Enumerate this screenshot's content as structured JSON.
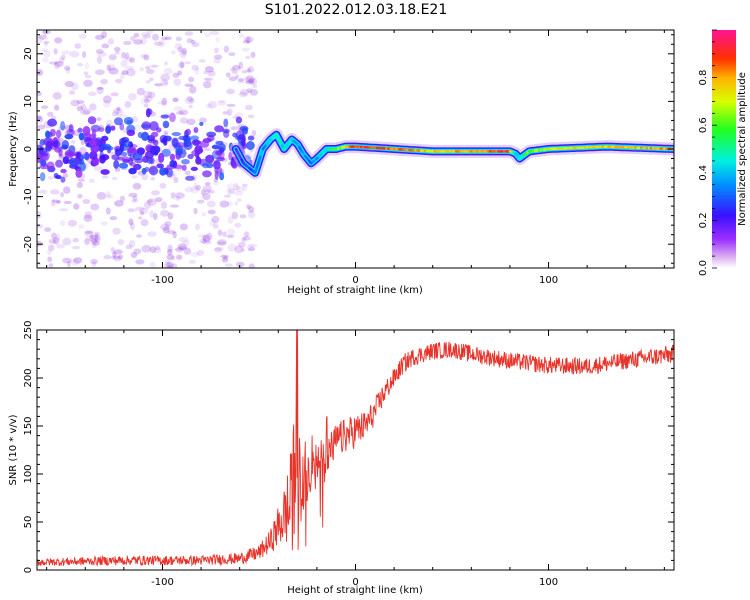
{
  "title": "S101.2022.012.03.18.E21",
  "colors": {
    "snr_line": "#e8332a",
    "scatter_purple": "#8a2be2",
    "ridge_blue": "#3a1cff",
    "ridge_cyan": "#00e5ff",
    "ridge_green": "#3cff3c",
    "ridge_red": "#e81010"
  },
  "colorbar": {
    "label": "Normalized spectral amplitude",
    "ticks": [
      "0.0",
      "0.2",
      "0.4",
      "0.6",
      "0.8"
    ],
    "tick_values": [
      0.0,
      0.2,
      0.4,
      0.6,
      0.8
    ],
    "range": [
      0,
      1
    ],
    "colormap": "gist_rainbow_r (magenta-blue-cyan-green-yellow-orange-red)"
  },
  "chart_data": [
    {
      "type": "heatmap",
      "name": "spectrogram",
      "xlabel": "Height of straight line (km)",
      "ylabel": "Frequency (Hz)",
      "xlim": [
        -165,
        165
      ],
      "ylim": [
        -25,
        25
      ],
      "xticks": [
        -100,
        0,
        100
      ],
      "xtick_labels": [
        "-100",
        "0",
        "100"
      ],
      "yticks": [
        -20,
        -10,
        0,
        10,
        20
      ],
      "ytick_labels": [
        "-20",
        "-10",
        "0",
        "10",
        "20"
      ],
      "grid": false,
      "ridge": {
        "x": [
          -165,
          -140,
          -110,
          -80,
          -62,
          -58,
          -52,
          -48,
          -44,
          -41,
          -37,
          -33,
          -30,
          -27,
          -23,
          -20,
          -15,
          -10,
          -5,
          0,
          20,
          40,
          60,
          80,
          83,
          85,
          90,
          100,
          130,
          165
        ],
        "y": [
          1,
          2,
          0,
          1,
          0,
          -3,
          -5,
          0,
          2,
          3,
          0,
          2,
          1,
          -1,
          -3,
          -2,
          0,
          0,
          0.5,
          0.5,
          0,
          -0.5,
          -0.5,
          -0.5,
          -1,
          -2,
          -0.5,
          0,
          0.5,
          0
        ],
        "amplitude": [
          0.2,
          0.2,
          0.2,
          0.2,
          0.2,
          0.2,
          0.3,
          0.35,
          0.4,
          0.45,
          0.45,
          0.4,
          0.35,
          0.35,
          0.3,
          0.35,
          0.45,
          0.55,
          0.75,
          0.9,
          0.85,
          0.75,
          0.8,
          0.9,
          0.5,
          0.4,
          0.6,
          0.7,
          0.75,
          0.8
        ]
      },
      "noise_region": {
        "x": [
          -165,
          -57
        ],
        "y": [
          -25,
          25
        ],
        "amplitude": "about 0.05-0.25"
      }
    },
    {
      "type": "line",
      "name": "snr",
      "xlabel": "Height of straight line (km)",
      "ylabel": "SNR (10 * v/v)",
      "xlim": [
        -165,
        165
      ],
      "ylim": [
        0,
        250
      ],
      "xticks": [
        -100,
        0,
        100
      ],
      "xtick_labels": [
        "-100",
        "0",
        "100"
      ],
      "yticks": [
        0,
        50,
        100,
        150,
        200,
        250
      ],
      "ytick_labels": [
        "0",
        "50",
        "100",
        "150",
        "200",
        "250"
      ],
      "grid": false,
      "series": [
        {
          "x": [
            -165,
            -120,
            -80,
            -60,
            -50,
            -44,
            -40,
            -36,
            -33,
            -31,
            -29,
            -27,
            -24,
            -20,
            -15,
            -10,
            -5,
            0,
            5,
            10,
            15,
            20,
            25,
            30,
            40,
            50,
            60,
            80,
            100,
            120,
            140,
            165
          ],
          "y": [
            8,
            10,
            10,
            12,
            18,
            30,
            45,
            60,
            75,
            100,
            80,
            95,
            110,
            105,
            120,
            135,
            140,
            145,
            150,
            165,
            185,
            200,
            215,
            222,
            228,
            230,
            225,
            218,
            213,
            212,
            218,
            225
          ],
          "noise": [
            4,
            5,
            5,
            6,
            8,
            12,
            22,
            35,
            55,
            80,
            60,
            40,
            30,
            25,
            20,
            18,
            18,
            18,
            16,
            14,
            12,
            10,
            10,
            9,
            9,
            9,
            9,
            9,
            9,
            9,
            9,
            10
          ]
        }
      ]
    }
  ]
}
